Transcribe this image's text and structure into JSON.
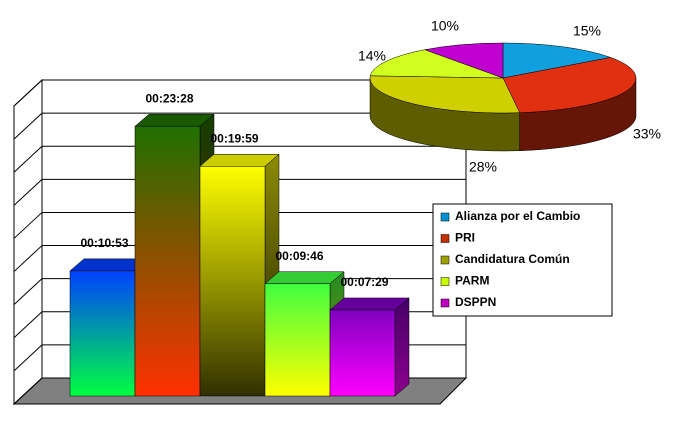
{
  "chart_data": [
    {
      "type": "bar3d",
      "categories": [
        "Alianza por el Cambio",
        "PRI",
        "Candidatura Común",
        "PARM",
        "DSPPN"
      ],
      "values": [
        653,
        1408,
        1199,
        586,
        449
      ],
      "value_labels": [
        "00:10:53",
        "00:23:28",
        "00:19:59",
        "00:09:46",
        "00:07:29"
      ],
      "colors": [
        "#0090d0",
        "#c03000",
        "#a0a000",
        "#c8ff00",
        "#c000c0"
      ],
      "gradients": [
        [
          "#0040ff",
          "#00ff40"
        ],
        [
          "#207000",
          "#ff3000"
        ],
        [
          "#ffff00",
          "#303000"
        ],
        [
          "#40ff40",
          "#ffff00"
        ],
        [
          "#8000c0",
          "#ff00ff"
        ]
      ],
      "ylim": [
        0,
        1555.2
      ],
      "yticks": [
        0,
        172.8,
        345.6,
        518.4,
        691.2,
        864,
        1036.8,
        1209.6,
        1382.4,
        1555.2
      ],
      "grid": true,
      "legend": "right"
    },
    {
      "type": "pie3d",
      "values": [
        15,
        33,
        28,
        14,
        10
      ],
      "value_labels": [
        "15%",
        "33%",
        "28%",
        "14%",
        "10%"
      ],
      "colors": [
        "#10a0e0",
        "#e03010",
        "#d0d000",
        "#d0ff20",
        "#c000d0"
      ]
    }
  ]
}
